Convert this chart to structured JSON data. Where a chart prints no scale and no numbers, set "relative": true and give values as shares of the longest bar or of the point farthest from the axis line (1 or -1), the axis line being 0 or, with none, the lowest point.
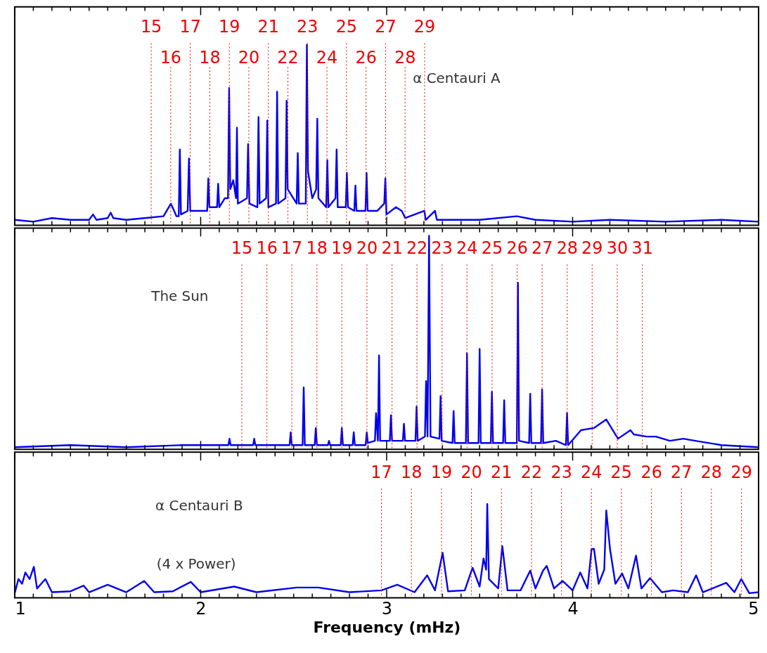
{
  "chart_data": [
    {
      "type": "line",
      "relative": true,
      "tick_labels": false,
      "xlim": [
        1,
        5
      ],
      "xticks": [
        1,
        {
          "value": 1.1,
          "label": null
        },
        {
          "value": 1.2,
          "label": null
        },
        {
          "value": 1.3,
          "label": null
        },
        {
          "value": 1.4,
          "label": null
        },
        {
          "value": 1.5,
          "label": null
        },
        {
          "value": 1.6,
          "label": null
        },
        {
          "value": 1.7,
          "label": null
        },
        {
          "value": 1.8,
          "label": null
        },
        {
          "value": 1.9,
          "label": null
        },
        2,
        {
          "value": 2.1,
          "label": null
        },
        {
          "value": 2.2,
          "label": null
        },
        {
          "value": 2.3,
          "label": null
        },
        {
          "value": 2.4,
          "label": null
        },
        {
          "value": 2.5,
          "label": null
        },
        {
          "value": 2.6,
          "label": null
        },
        {
          "value": 2.7,
          "label": null
        },
        {
          "value": 2.8,
          "label": null
        },
        {
          "value": 2.9,
          "label": null
        },
        3,
        {
          "value": 3.1,
          "label": null
        },
        {
          "value": 3.2,
          "label": null
        },
        {
          "value": 3.3,
          "label": null
        },
        {
          "value": 3.4,
          "label": null
        },
        {
          "value": 3.5,
          "label": null
        },
        {
          "value": 3.6,
          "label": null
        },
        {
          "value": 3.7,
          "label": null
        },
        {
          "value": 3.8,
          "label": null
        },
        {
          "value": 3.9,
          "label": null
        },
        4,
        {
          "value": 4.1,
          "label": null
        },
        {
          "value": 4.2,
          "label": null
        },
        {
          "value": 4.3,
          "label": null
        },
        {
          "value": 4.4,
          "label": null
        },
        {
          "value": 4.5,
          "label": null
        },
        {
          "value": 4.6,
          "label": null
        },
        {
          "value": 4.7,
          "label": null
        },
        {
          "value": 4.8,
          "label": null
        },
        {
          "value": 4.9,
          "label": null
        },
        5
      ],
      "annotations": [
        "α Centauri A",
        "15",
        "16",
        "17",
        "18",
        "19",
        "20",
        "21",
        "22",
        "23",
        "24",
        "25",
        "26",
        "27",
        "28",
        "29"
      ],
      "x": [
        1.0,
        1.1,
        1.2,
        1.3,
        1.4,
        1.421,
        1.44,
        1.5,
        1.516,
        1.53,
        1.6,
        1.7,
        1.8,
        1.84,
        1.87,
        1.882,
        1.888,
        1.894,
        1.93,
        1.937,
        1.944,
        2.0,
        2.035,
        2.041,
        2.047,
        2.088,
        2.094,
        2.1,
        2.13,
        2.147,
        2.153,
        2.159,
        2.175,
        2.19,
        2.195,
        2.2,
        2.249,
        2.255,
        2.262,
        2.305,
        2.311,
        2.317,
        2.352,
        2.358,
        2.364,
        2.405,
        2.411,
        2.417,
        2.456,
        2.462,
        2.468,
        2.516,
        2.522,
        2.528,
        2.565,
        2.571,
        2.577,
        2.6,
        2.621,
        2.627,
        2.633,
        2.675,
        2.681,
        2.687,
        2.725,
        2.731,
        2.737,
        2.78,
        2.786,
        2.792,
        2.826,
        2.832,
        2.838,
        2.886,
        2.892,
        2.898,
        2.95,
        2.987,
        2.993,
        2.999,
        3.05,
        3.081,
        3.1,
        3.203,
        3.21,
        3.26,
        3.27,
        3.4,
        3.5,
        3.7,
        3.8,
        4.0,
        4.2,
        4.5,
        4.8,
        5.0
      ],
      "series": [
        {
          "color": "#0000ee",
          "values": [
            0.03,
            0.02,
            0.04,
            0.03,
            0.03,
            0.06,
            0.03,
            0.04,
            0.07,
            0.04,
            0.03,
            0.04,
            0.05,
            0.12,
            0.05,
            0.05,
            0.42,
            0.06,
            0.08,
            0.37,
            0.08,
            0.08,
            0.08,
            0.26,
            0.1,
            0.1,
            0.23,
            0.1,
            0.15,
            0.15,
            0.76,
            0.2,
            0.25,
            0.15,
            0.54,
            0.12,
            0.15,
            0.45,
            0.12,
            0.1,
            0.6,
            0.12,
            0.15,
            0.58,
            0.1,
            0.12,
            0.74,
            0.12,
            0.15,
            0.69,
            0.2,
            0.12,
            0.4,
            0.12,
            0.12,
            1,
            0.3,
            0.15,
            0.2,
            0.59,
            0.15,
            0.1,
            0.36,
            0.1,
            0.15,
            0.42,
            0.1,
            0.1,
            0.29,
            0.1,
            0.08,
            0.22,
            0.08,
            0.08,
            0.29,
            0.08,
            0.08,
            0.12,
            0.26,
            0.06,
            0.1,
            0.08,
            0.04,
            0.08,
            0.03,
            0.08,
            0.03,
            0.03,
            0.03,
            0.05,
            0.03,
            0.02,
            0.03,
            0.02,
            0.03,
            0.02
          ]
        }
      ],
      "ref_lines": [
        {
          "axis": "x",
          "value": 1.734,
          "color": "#ee0000",
          "line_style": "dotted"
        },
        {
          "axis": "x",
          "value": 1.839,
          "color": "#ee0000",
          "line_style": "dotted"
        },
        {
          "axis": "x",
          "value": 1.944,
          "color": "#ee0000",
          "line_style": "dotted"
        },
        {
          "axis": "x",
          "value": 2.049,
          "color": "#ee0000",
          "line_style": "dotted"
        },
        {
          "axis": "x",
          "value": 2.154,
          "color": "#ee0000",
          "line_style": "dotted"
        },
        {
          "axis": "x",
          "value": 2.259,
          "color": "#ee0000",
          "line_style": "dotted"
        },
        {
          "axis": "x",
          "value": 2.364,
          "color": "#ee0000",
          "line_style": "dotted"
        },
        {
          "axis": "x",
          "value": 2.469,
          "color": "#ee0000",
          "line_style": "dotted"
        },
        {
          "axis": "x",
          "value": 2.574,
          "color": "#ee0000",
          "line_style": "dotted"
        },
        {
          "axis": "x",
          "value": 2.679,
          "color": "#ee0000",
          "line_style": "dotted"
        },
        {
          "axis": "x",
          "value": 2.784,
          "color": "#ee0000",
          "line_style": "dotted"
        },
        {
          "axis": "x",
          "value": 2.889,
          "color": "#ee0000",
          "line_style": "dotted"
        },
        {
          "axis": "x",
          "value": 2.994,
          "color": "#ee0000",
          "line_style": "dotted"
        },
        {
          "axis": "x",
          "value": 3.099,
          "color": "#ee0000",
          "line_style": "dotted"
        },
        {
          "axis": "x",
          "value": 3.204,
          "color": "#ee0000",
          "line_style": "dotted"
        }
      ]
    },
    {
      "type": "line",
      "relative": true,
      "tick_labels": false,
      "xlim": [
        1,
        5
      ],
      "xticks": [
        1,
        {
          "value": 1.1,
          "label": null
        },
        {
          "value": 1.2,
          "label": null
        },
        {
          "value": 1.3,
          "label": null
        },
        {
          "value": 1.4,
          "label": null
        },
        {
          "value": 1.5,
          "label": null
        },
        {
          "value": 1.6,
          "label": null
        },
        {
          "value": 1.7,
          "label": null
        },
        {
          "value": 1.8,
          "label": null
        },
        {
          "value": 1.9,
          "label": null
        },
        2,
        {
          "value": 2.1,
          "label": null
        },
        {
          "value": 2.2,
          "label": null
        },
        {
          "value": 2.3,
          "label": null
        },
        {
          "value": 2.4,
          "label": null
        },
        {
          "value": 2.5,
          "label": null
        },
        {
          "value": 2.6,
          "label": null
        },
        {
          "value": 2.7,
          "label": null
        },
        {
          "value": 2.8,
          "label": null
        },
        {
          "value": 2.9,
          "label": null
        },
        3,
        {
          "value": 3.1,
          "label": null
        },
        {
          "value": 3.2,
          "label": null
        },
        {
          "value": 3.3,
          "label": null
        },
        {
          "value": 3.4,
          "label": null
        },
        {
          "value": 3.5,
          "label": null
        },
        {
          "value": 3.6,
          "label": null
        },
        {
          "value": 3.7,
          "label": null
        },
        {
          "value": 3.8,
          "label": null
        },
        {
          "value": 3.9,
          "label": null
        },
        4,
        {
          "value": 4.1,
          "label": null
        },
        {
          "value": 4.2,
          "label": null
        },
        {
          "value": 4.3,
          "label": null
        },
        {
          "value": 4.4,
          "label": null
        },
        {
          "value": 4.5,
          "label": null
        },
        {
          "value": 4.6,
          "label": null
        },
        {
          "value": 4.7,
          "label": null
        },
        {
          "value": 4.8,
          "label": null
        },
        {
          "value": 4.9,
          "label": null
        },
        5
      ],
      "annotations": [
        "The Sun",
        "15",
        "16",
        "17",
        "18",
        "19",
        "20",
        "21",
        "22",
        "23",
        "24",
        "25",
        "26",
        "27",
        "28",
        "29",
        "30",
        "31"
      ],
      "x": [
        1.0,
        1.3,
        1.6,
        1.9,
        2.1,
        2.149,
        2.155,
        2.161,
        2.282,
        2.288,
        2.294,
        2.478,
        2.484,
        2.49,
        2.548,
        2.554,
        2.56,
        2.613,
        2.619,
        2.625,
        2.684,
        2.69,
        2.696,
        2.753,
        2.759,
        2.765,
        2.817,
        2.823,
        2.829,
        2.887,
        2.893,
        2.899,
        2.937,
        2.943,
        2.953,
        2.959,
        2.965,
        3.017,
        3.023,
        3.029,
        3.087,
        3.093,
        3.099,
        3.155,
        3.161,
        3.167,
        3.206,
        3.212,
        3.22,
        3.228,
        3.236,
        3.284,
        3.29,
        3.296,
        3.354,
        3.36,
        3.366,
        3.426,
        3.432,
        3.438,
        3.494,
        3.5,
        3.506,
        3.56,
        3.566,
        3.572,
        3.626,
        3.632,
        3.638,
        3.7,
        3.706,
        3.712,
        3.766,
        3.772,
        3.778,
        3.83,
        3.836,
        3.842,
        3.91,
        3.964,
        3.97,
        3.976,
        4.045,
        4.114,
        4.181,
        4.244,
        4.311,
        4.329,
        4.398,
        4.448,
        4.523,
        4.595,
        4.66,
        4.8,
        5.0
      ],
      "series": [
        {
          "color": "#0000ee",
          "values": [
            0.01,
            0.02,
            0.01,
            0.02,
            0.02,
            0.02,
            0.05,
            0.02,
            0.02,
            0.05,
            0.02,
            0.02,
            0.08,
            0.02,
            0.02,
            0.29,
            0.02,
            0.02,
            0.1,
            0.02,
            0.02,
            0.04,
            0.02,
            0.02,
            0.1,
            0.02,
            0.02,
            0.08,
            0.02,
            0.02,
            0.08,
            0.03,
            0.04,
            0.17,
            0.04,
            0.44,
            0.04,
            0.04,
            0.16,
            0.04,
            0.04,
            0.12,
            0.04,
            0.04,
            0.2,
            0.04,
            0.06,
            0.32,
            0.06,
            1,
            0.06,
            0.05,
            0.25,
            0.04,
            0.03,
            0.18,
            0.03,
            0.03,
            0.45,
            0.03,
            0.03,
            0.47,
            0.03,
            0.03,
            0.27,
            0.03,
            0.03,
            0.23,
            0.03,
            0.03,
            0.78,
            0.04,
            0.03,
            0.26,
            0.03,
            0.03,
            0.28,
            0.03,
            0.04,
            0.02,
            0.17,
            0.02,
            0.09,
            0.1,
            0.14,
            0.05,
            0.09,
            0.07,
            0.06,
            0.06,
            0.04,
            0.05,
            0.04,
            0.02,
            0.01
          ]
        }
      ],
      "ref_lines": [
        {
          "axis": "x",
          "value": 2.221,
          "color": "#ee0000",
          "line_style": "dotted"
        },
        {
          "axis": "x",
          "value": 2.356,
          "color": "#ee0000",
          "line_style": "dotted"
        },
        {
          "axis": "x",
          "value": 2.49,
          "color": "#ee0000",
          "line_style": "dotted"
        },
        {
          "axis": "x",
          "value": 2.625,
          "color": "#ee0000",
          "line_style": "dotted"
        },
        {
          "axis": "x",
          "value": 2.759,
          "color": "#ee0000",
          "line_style": "dotted"
        },
        {
          "axis": "x",
          "value": 2.894,
          "color": "#ee0000",
          "line_style": "dotted"
        },
        {
          "axis": "x",
          "value": 3.029,
          "color": "#ee0000",
          "line_style": "dotted"
        },
        {
          "axis": "x",
          "value": 3.163,
          "color": "#ee0000",
          "line_style": "dotted"
        },
        {
          "axis": "x",
          "value": 3.298,
          "color": "#ee0000",
          "line_style": "dotted"
        },
        {
          "axis": "x",
          "value": 3.432,
          "color": "#ee0000",
          "line_style": "dotted"
        },
        {
          "axis": "x",
          "value": 3.567,
          "color": "#ee0000",
          "line_style": "dotted"
        },
        {
          "axis": "x",
          "value": 3.702,
          "color": "#ee0000",
          "line_style": "dotted"
        },
        {
          "axis": "x",
          "value": 3.836,
          "color": "#ee0000",
          "line_style": "dotted"
        },
        {
          "axis": "x",
          "value": 3.971,
          "color": "#ee0000",
          "line_style": "dotted"
        },
        {
          "axis": "x",
          "value": 4.105,
          "color": "#ee0000",
          "line_style": "dotted"
        },
        {
          "axis": "x",
          "value": 4.24,
          "color": "#ee0000",
          "line_style": "dotted"
        },
        {
          "axis": "x",
          "value": 4.375,
          "color": "#ee0000",
          "line_style": "dotted"
        }
      ]
    },
    {
      "type": "line",
      "relative": true,
      "tick_labels": "x",
      "xlim": [
        1,
        5
      ],
      "xlabel": "Frequency (mHz)",
      "xticks": [
        1,
        {
          "value": 1.1,
          "label": null
        },
        {
          "value": 1.2,
          "label": null
        },
        {
          "value": 1.3,
          "label": null
        },
        {
          "value": 1.4,
          "label": null
        },
        {
          "value": 1.5,
          "label": null
        },
        {
          "value": 1.6,
          "label": null
        },
        {
          "value": 1.7,
          "label": null
        },
        {
          "value": 1.8,
          "label": null
        },
        {
          "value": 1.9,
          "label": null
        },
        2,
        {
          "value": 2.1,
          "label": null
        },
        {
          "value": 2.2,
          "label": null
        },
        {
          "value": 2.3,
          "label": null
        },
        {
          "value": 2.4,
          "label": null
        },
        {
          "value": 2.5,
          "label": null
        },
        {
          "value": 2.6,
          "label": null
        },
        {
          "value": 2.7,
          "label": null
        },
        {
          "value": 2.8,
          "label": null
        },
        {
          "value": 2.9,
          "label": null
        },
        3,
        {
          "value": 3.1,
          "label": null
        },
        {
          "value": 3.2,
          "label": null
        },
        {
          "value": 3.3,
          "label": null
        },
        {
          "value": 3.4,
          "label": null
        },
        {
          "value": 3.5,
          "label": null
        },
        {
          "value": 3.6,
          "label": null
        },
        {
          "value": 3.7,
          "label": null
        },
        {
          "value": 3.8,
          "label": null
        },
        {
          "value": 3.9,
          "label": null
        },
        4,
        {
          "value": 4.1,
          "label": null
        },
        {
          "value": 4.2,
          "label": null
        },
        {
          "value": 4.3,
          "label": null
        },
        {
          "value": 4.4,
          "label": null
        },
        {
          "value": 4.5,
          "label": null
        },
        {
          "value": 4.6,
          "label": null
        },
        {
          "value": 4.7,
          "label": null
        },
        {
          "value": 4.8,
          "label": null
        },
        {
          "value": 4.9,
          "label": null
        },
        5
      ],
      "annotations": [
        "α Centauri B",
        "(4 x Power)",
        "17",
        "18",
        "19",
        "20",
        "21",
        "22",
        "23",
        "24",
        "25",
        "26",
        "27",
        "28",
        "29"
      ],
      "x": [
        1.0,
        1.02,
        1.04,
        1.057,
        1.08,
        1.103,
        1.12,
        1.165,
        1.2,
        1.3,
        1.371,
        1.4,
        1.5,
        1.6,
        1.696,
        1.75,
        1.85,
        1.947,
        2.0,
        2.18,
        2.3,
        2.515,
        2.633,
        2.8,
        2.972,
        3.057,
        3.15,
        3.218,
        3.26,
        3.301,
        3.33,
        3.42,
        3.462,
        3.5,
        3.521,
        3.535,
        3.541,
        3.55,
        3.6,
        3.622,
        3.65,
        3.72,
        3.772,
        3.8,
        3.841,
        3.861,
        3.9,
        3.946,
        4.0,
        4.041,
        4.08,
        4.102,
        4.115,
        4.14,
        4.17,
        4.181,
        4.201,
        4.23,
        4.266,
        4.3,
        4.341,
        4.37,
        4.416,
        4.48,
        4.54,
        4.62,
        4.664,
        4.7,
        4.826,
        4.87,
        4.907,
        4.95,
        5.0
      ],
      "series": [
        {
          "color": "#0000ee",
          "values": [
            0.05,
            0.2,
            0.15,
            0.27,
            0.2,
            0.33,
            0.1,
            0.2,
            0.06,
            0.07,
            0.13,
            0.06,
            0.14,
            0.06,
            0.18,
            0.06,
            0.07,
            0.17,
            0.06,
            0.12,
            0.06,
            0.11,
            0.11,
            0.06,
            0.08,
            0.14,
            0.06,
            0.24,
            0.08,
            0.48,
            0.07,
            0.08,
            0.32,
            0.12,
            0.42,
            0.3,
            1,
            0.2,
            0.1,
            0.55,
            0.08,
            0.08,
            0.29,
            0.1,
            0.29,
            0.34,
            0.1,
            0.18,
            0.08,
            0.27,
            0.1,
            0.52,
            0.52,
            0.15,
            0.3,
            0.93,
            0.52,
            0.15,
            0.26,
            0.1,
            0.45,
            0.1,
            0.21,
            0.06,
            0.08,
            0.06,
            0.24,
            0.06,
            0.16,
            0.06,
            0.2,
            0.05,
            0.06
          ]
        }
      ],
      "ref_lines": [
        {
          "axis": "x",
          "value": 2.972,
          "color": "#ee0000",
          "line_style": "dotted"
        },
        {
          "axis": "x",
          "value": 3.133,
          "color": "#ee0000",
          "line_style": "dotted"
        },
        {
          "axis": "x",
          "value": 3.295,
          "color": "#ee0000",
          "line_style": "dotted"
        },
        {
          "axis": "x",
          "value": 3.456,
          "color": "#ee0000",
          "line_style": "dotted"
        },
        {
          "axis": "x",
          "value": 3.617,
          "color": "#ee0000",
          "line_style": "dotted"
        },
        {
          "axis": "x",
          "value": 3.779,
          "color": "#ee0000",
          "line_style": "dotted"
        },
        {
          "axis": "x",
          "value": 3.94,
          "color": "#ee0000",
          "line_style": "dotted"
        },
        {
          "axis": "x",
          "value": 4.101,
          "color": "#ee0000",
          "line_style": "dotted"
        },
        {
          "axis": "x",
          "value": 4.262,
          "color": "#ee0000",
          "line_style": "dotted"
        },
        {
          "axis": "x",
          "value": 4.424,
          "color": "#ee0000",
          "line_style": "dotted"
        },
        {
          "axis": "x",
          "value": 4.585,
          "color": "#ee0000",
          "line_style": "dotted"
        },
        {
          "axis": "x",
          "value": 4.746,
          "color": "#ee0000",
          "line_style": "dotted"
        },
        {
          "axis": "x",
          "value": 4.908,
          "color": "#ee0000",
          "line_style": "dotted"
        }
      ]
    }
  ]
}
